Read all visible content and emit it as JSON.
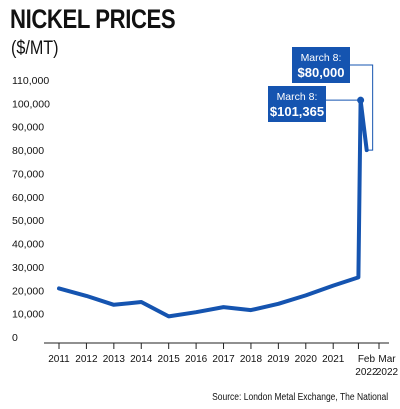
{
  "chart_data": {
    "type": "line",
    "title": "NICKEL PRICES",
    "subtitle": "($/MT)",
    "source": "Source: London Metal Exchange, The National",
    "colors": {
      "line": "#1554b0",
      "callout_bg": "#1554b0",
      "callout_text": "#ffffff"
    },
    "grid": false,
    "ylim": [
      0,
      110000
    ],
    "y_ticks": [
      0,
      10000,
      20000,
      30000,
      40000,
      50000,
      60000,
      70000,
      80000,
      90000,
      100000,
      110000
    ],
    "y_tick_labels": [
      "0",
      "10,000",
      "20,000",
      "30,000",
      "40,000",
      "50,000",
      "60,000",
      "70,000",
      "80,000",
      "90,000",
      "100,000",
      "110,000"
    ],
    "x_ticks": [
      {
        "x": 2011,
        "label": "2011",
        "label2": ""
      },
      {
        "x": 2012,
        "label": "2012",
        "label2": ""
      },
      {
        "x": 2013,
        "label": "2013",
        "label2": ""
      },
      {
        "x": 2014,
        "label": "2014",
        "label2": ""
      },
      {
        "x": 2015,
        "label": "2015",
        "label2": ""
      },
      {
        "x": 2016,
        "label": "2016",
        "label2": ""
      },
      {
        "x": 2017,
        "label": "2017",
        "label2": ""
      },
      {
        "x": 2018,
        "label": "2018",
        "label2": ""
      },
      {
        "x": 2019,
        "label": "2019",
        "label2": ""
      },
      {
        "x": 2020,
        "label": "2020",
        "label2": ""
      },
      {
        "x": 2021,
        "label": "2021",
        "label2": ""
      },
      {
        "x": 2021.92,
        "label": "Feb",
        "label2": "2022"
      },
      {
        "x": 2022.67,
        "label": "Mar",
        "label2": "2022"
      }
    ],
    "series": [
      {
        "x": [
          2011,
          2012,
          2013,
          2014,
          2015,
          2016,
          2017,
          2018,
          2019,
          2020,
          2021,
          2021.92,
          2022.0,
          2022.22
        ],
        "values": [
          20800,
          17600,
          13800,
          15000,
          8800,
          10600,
          12800,
          11500,
          14200,
          17800,
          22000,
          25500,
          101365,
          80000
        ]
      }
    ],
    "annotations": [
      {
        "label": "March 8:",
        "value": "$80,000",
        "x": 2022.22,
        "y": 80000
      },
      {
        "label": "March 8:",
        "value": "$101,365",
        "x": 2022.0,
        "y": 101365
      }
    ]
  }
}
